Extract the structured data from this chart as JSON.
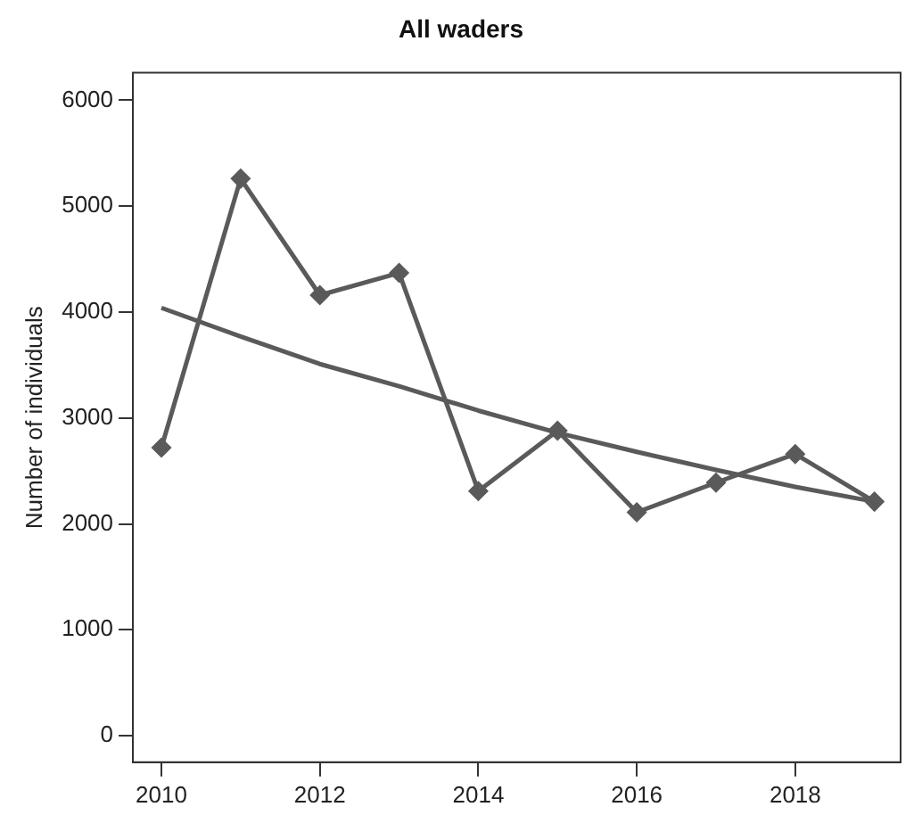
{
  "chart_data": {
    "type": "line",
    "title": "All waders",
    "ylabel": "Number of individuals",
    "x": [
      2010,
      2011,
      2012,
      2013,
      2014,
      2015,
      2016,
      2017,
      2018,
      2019
    ],
    "series": [
      {
        "color": "#5a5a5a",
        "marker": "diamond",
        "values": [
          2720,
          5260,
          4160,
          4370,
          2310,
          2880,
          2110,
          2390,
          2660,
          2210
        ]
      },
      {
        "color": "#5a5a5a",
        "marker": "none",
        "values": [
          4040,
          3770,
          3510,
          3300,
          3070,
          2860,
          2680,
          2510,
          2350,
          2210
        ]
      }
    ],
    "xlim": [
      2009.64,
      2019.33
    ],
    "ylim": [
      -250,
      6260
    ],
    "xticks": [
      2010,
      2012,
      2014,
      2016,
      2018
    ],
    "yticks": [
      0,
      1000,
      2000,
      3000,
      4000,
      5000,
      6000
    ],
    "grid": false,
    "legend": false
  }
}
